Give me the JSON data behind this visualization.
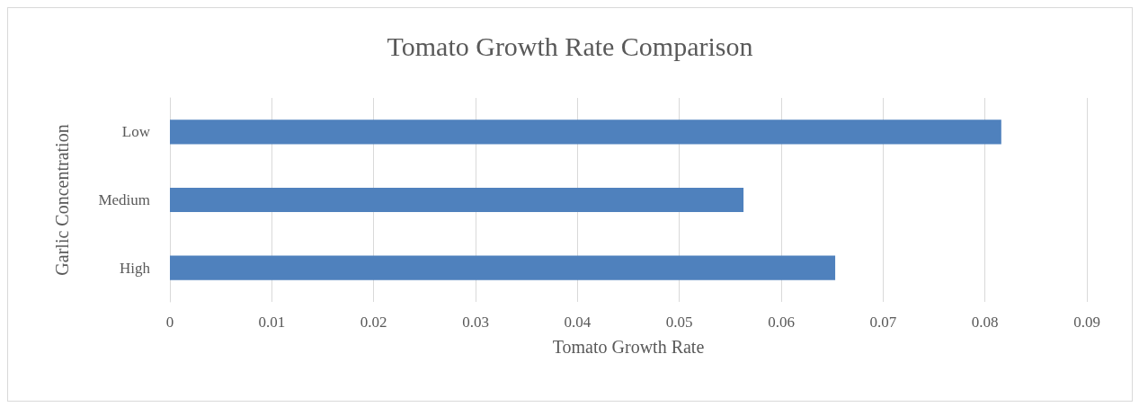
{
  "chart_data": {
    "type": "bar",
    "orientation": "horizontal",
    "title": "Tomato Growth Rate Comparison",
    "xlabel": "Tomato Growth Rate",
    "ylabel": "Garlic Concentration",
    "categories": [
      "Low",
      "Medium",
      "High"
    ],
    "values": [
      0.0816,
      0.0563,
      0.0653
    ],
    "color": "#4f81bd",
    "xlim": [
      0,
      0.09
    ],
    "xticks": [
      0,
      0.01,
      0.02,
      0.03,
      0.04,
      0.05,
      0.06,
      0.07,
      0.08,
      0.09
    ],
    "grid": "x"
  }
}
